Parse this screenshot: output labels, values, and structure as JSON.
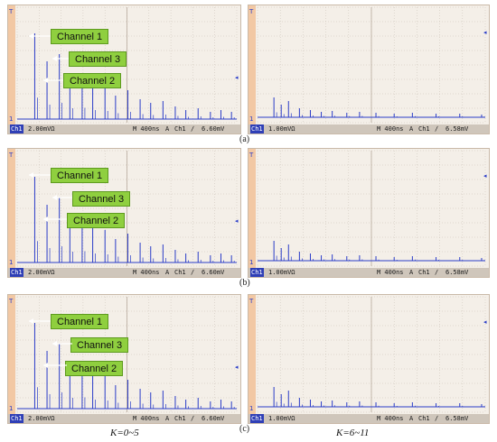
{
  "rows": [
    {
      "caption": "(a)",
      "left": {
        "ch_label": "Ch1",
        "volts": "2.00mVΩ",
        "time": "M 400ns",
        "trig": "A",
        "trig_ch": "Ch1",
        "slope": "∕",
        "level": "6.60mV"
      },
      "right": {
        "ch_label": "Ch1",
        "volts": "1.00mVΩ",
        "time": "M 400ns",
        "trig": "A",
        "trig_ch": "Ch1",
        "slope": "∕",
        "level": "6.58mV"
      },
      "tags": [
        "Channel 1",
        "Channel 3",
        "Channel 2"
      ]
    },
    {
      "caption": "(b)",
      "left": {
        "ch_label": "Ch1",
        "volts": "2.00mVΩ",
        "time": "M 400ns",
        "trig": "A",
        "trig_ch": "Ch1",
        "slope": "∕",
        "level": "6.60mV"
      },
      "right": {
        "ch_label": "Ch1",
        "volts": "1.00mVΩ",
        "time": "M 400ns",
        "trig": "A",
        "trig_ch": "Ch1",
        "slope": "∕",
        "level": "6.58mV"
      },
      "tags": [
        "Channel 1",
        "Channel 3",
        "Channel 2"
      ]
    },
    {
      "caption": "(c)",
      "left": {
        "ch_label": "Ch1",
        "volts": "2.00mVΩ",
        "time": "M 400ns",
        "trig": "A",
        "trig_ch": "Ch1",
        "slope": "∕",
        "level": "6.60mV"
      },
      "right": {
        "ch_label": "Ch1",
        "volts": "1.00mVΩ",
        "time": "M 400ns",
        "trig": "A",
        "trig_ch": "Ch1",
        "slope": "∕",
        "level": "6.58mV"
      },
      "tags": [
        "Channel 1",
        "Channel 3",
        "Channel 2"
      ]
    }
  ],
  "bottom_labels": {
    "left": "K=0~5",
    "right": "K=6~11"
  },
  "colors": {
    "trace": "#2a3cc8",
    "tag_fill": "#8fcf3f",
    "grid": "#c9bfb4",
    "bg": "#f4efe8"
  }
}
